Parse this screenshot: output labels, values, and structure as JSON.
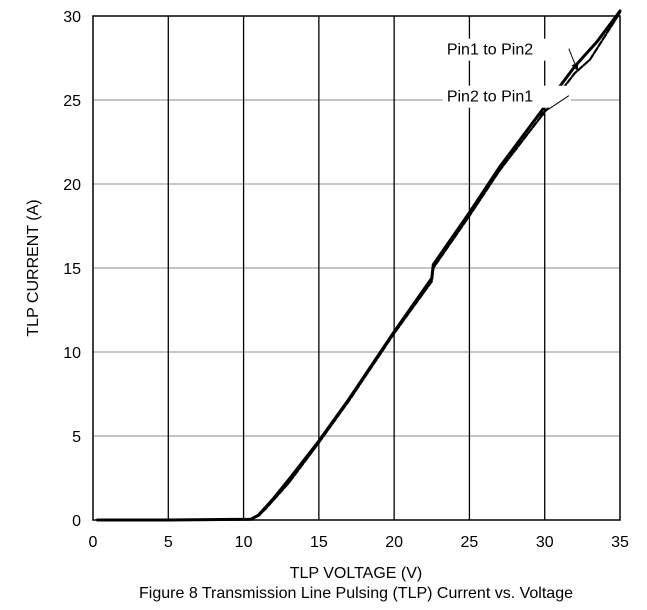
{
  "chart_data": {
    "type": "line",
    "title": "",
    "xlabel": "TLP VOLTAGE (V)",
    "ylabel": "TLP CURRENT (A)",
    "xlim": [
      0,
      35
    ],
    "ylim": [
      0,
      30
    ],
    "xticks": [
      0,
      5,
      10,
      15,
      20,
      25,
      30,
      35
    ],
    "yticks": [
      0,
      5,
      10,
      15,
      20,
      25,
      30
    ],
    "grid": "vertical and horizontal major gridlines",
    "line_color": "#000000",
    "series": [
      {
        "name": "Pin1 to Pin2",
        "x": [
          0.3,
          5,
          10.5,
          11,
          11.5,
          12,
          13,
          15,
          17,
          20,
          22.5,
          22.6,
          25,
          27,
          30,
          32,
          33.5,
          35
        ],
        "y": [
          0,
          0,
          0.05,
          0.3,
          0.8,
          1.3,
          2.4,
          4.7,
          7.2,
          11.2,
          14.4,
          15.2,
          18.3,
          21,
          24.6,
          27,
          28.5,
          30.3
        ]
      },
      {
        "name": "Pin2 to Pin1",
        "x": [
          0.3,
          5,
          10.5,
          11,
          11.5,
          12,
          13,
          15,
          17,
          20,
          22.5,
          22.6,
          25,
          27,
          30,
          32,
          33,
          34,
          35
        ],
        "y": [
          0,
          0,
          0.05,
          0.25,
          0.7,
          1.2,
          2.2,
          4.6,
          7.1,
          11.1,
          14.2,
          15,
          18.1,
          20.8,
          24.3,
          26.6,
          27.4,
          28.8,
          30.2
        ]
      }
    ],
    "annotations": [
      {
        "text": "Pin1 to Pin2",
        "x": 23.5,
        "y": 27.7,
        "arrow_to": [
          32.2,
          26.7
        ]
      },
      {
        "text": "Pin2 to Pin1",
        "x": 23.5,
        "y": 24.9,
        "arrow_to": [
          29.5,
          24
        ]
      }
    ]
  },
  "caption": "Figure 8 Transmission Line Pulsing (TLP) Current vs. Voltage"
}
